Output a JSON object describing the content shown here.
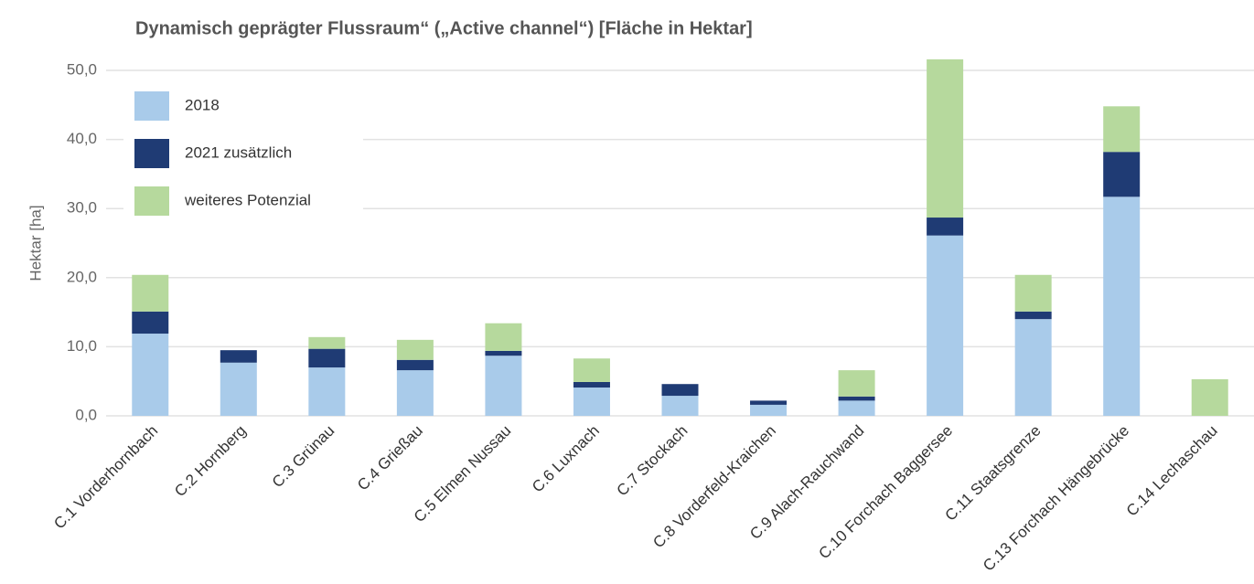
{
  "chart_data": {
    "type": "stacked_bar",
    "title": "Dynamisch geprägter Flussraum“ („Active channel“) [Fläche in Hektar]",
    "y_label": "Hektar [ha]",
    "categories": [
      "C.1 Vorderhornbach",
      "C.2 Hornberg",
      "C.3 Grünau",
      "C.4 Grießau",
      "C.5 Elmen Nussau",
      "C.6 Luxnach",
      "C.7 Stockach",
      "C.8 Vorderfeld-Kraichen",
      "C.9 Alach-Rauchwand",
      "C.10 Forchach  Baggersee",
      "C.11 Staatsgrenze",
      "C.13 Forchach Hängebrücke",
      "C.14 Lechaschau"
    ],
    "series": [
      {
        "name": "2018",
        "color": "#a9cbea",
        "values": [
          11.9,
          7.7,
          7.0,
          6.6,
          8.7,
          4.1,
          2.9,
          1.6,
          2.2,
          26.1,
          14.0,
          31.7,
          0
        ]
      },
      {
        "name": "2021 zusätzlich",
        "color": "#1f3b74",
        "values": [
          3.2,
          1.8,
          2.7,
          1.5,
          0.7,
          0.8,
          1.7,
          0.6,
          0.6,
          2.6,
          1.1,
          6.5,
          0
        ]
      },
      {
        "name": "weiteres Potenzial",
        "color": "#b6d99d",
        "values": [
          5.3,
          0,
          1.7,
          2.9,
          4.0,
          3.4,
          0,
          0,
          3.8,
          22.9,
          5.3,
          6.6,
          5.3
        ]
      }
    ],
    "ylim": [
      0,
      50
    ],
    "yticks": [
      {
        "value": 0,
        "label": "0,0"
      },
      {
        "value": 10,
        "label": "10,0"
      },
      {
        "value": 20,
        "label": "20,0"
      },
      {
        "value": 30,
        "label": "30,0"
      },
      {
        "value": 40,
        "label": "40,0"
      },
      {
        "value": 50,
        "label": "50,0"
      }
    ],
    "grid": true,
    "legend": "upper left"
  }
}
